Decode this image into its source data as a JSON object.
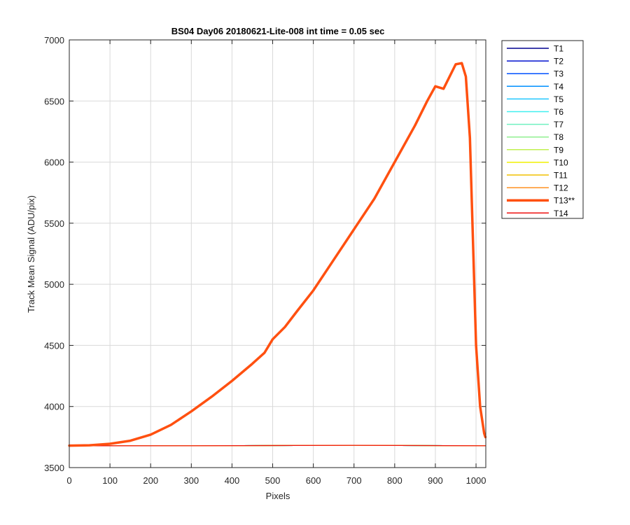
{
  "chart_data": {
    "type": "line",
    "title": "BS04 Day06 20180621-Lite-008 int time = 0.05 sec",
    "xlabel": "Pixels",
    "ylabel": "Track Mean Signal (ADU/pix)",
    "xlim": [
      0,
      1024
    ],
    "ylim": [
      3500,
      7000
    ],
    "xticks": [
      0,
      100,
      200,
      300,
      400,
      500,
      600,
      700,
      800,
      900,
      1000
    ],
    "yticks": [
      3500,
      4000,
      4500,
      5000,
      5500,
      6000,
      6500,
      7000
    ],
    "grid": true,
    "legend_position": "outside-right-top",
    "series": [
      {
        "name": "T1",
        "color": "#00008f",
        "x": [
          0,
          300,
          700,
          1023
        ],
        "values": [
          3678,
          3679,
          3682,
          3679
        ]
      },
      {
        "name": "T2",
        "color": "#0010d0",
        "x": [
          0,
          300,
          700,
          1023
        ],
        "values": [
          3678,
          3679,
          3682,
          3679
        ]
      },
      {
        "name": "T3",
        "color": "#0050ff",
        "x": [
          0,
          300,
          700,
          1023
        ],
        "values": [
          3678,
          3679,
          3682,
          3679
        ]
      },
      {
        "name": "T4",
        "color": "#0090ff",
        "x": [
          0,
          300,
          700,
          1023
        ],
        "values": [
          3678,
          3679,
          3682,
          3679
        ]
      },
      {
        "name": "T5",
        "color": "#20c8ff",
        "x": [
          0,
          300,
          700,
          1023
        ],
        "values": [
          3678,
          3679,
          3682,
          3679
        ]
      },
      {
        "name": "T6",
        "color": "#40f0f0",
        "x": [
          0,
          300,
          700,
          1023
        ],
        "values": [
          3678,
          3679,
          3682,
          3679
        ]
      },
      {
        "name": "T7",
        "color": "#70f0c0",
        "x": [
          0,
          300,
          700,
          1023
        ],
        "values": [
          3678,
          3679,
          3682,
          3679
        ]
      },
      {
        "name": "T8",
        "color": "#90f090",
        "x": [
          0,
          300,
          700,
          1023
        ],
        "values": [
          3678,
          3679,
          3682,
          3679
        ]
      },
      {
        "name": "T9",
        "color": "#c0f050",
        "x": [
          0,
          300,
          700,
          1023
        ],
        "values": [
          3678,
          3679,
          3682,
          3679
        ]
      },
      {
        "name": "T10",
        "color": "#f0f000",
        "x": [
          0,
          300,
          700,
          1023
        ],
        "values": [
          3678,
          3679,
          3682,
          3679
        ]
      },
      {
        "name": "T11",
        "color": "#f0c000",
        "x": [
          0,
          300,
          700,
          1023
        ],
        "values": [
          3678,
          3679,
          3683,
          3679
        ]
      },
      {
        "name": "T12",
        "color": "#ff9020",
        "x": [
          0,
          300,
          700,
          1023
        ],
        "values": [
          3678,
          3679,
          3683,
          3679
        ]
      },
      {
        "name": "T13**",
        "color": "#ff5010",
        "bold": true,
        "x": [
          0,
          50,
          100,
          150,
          200,
          250,
          300,
          350,
          400,
          450,
          480,
          500,
          530,
          560,
          600,
          650,
          700,
          750,
          800,
          850,
          880,
          900,
          920,
          950,
          965,
          975,
          985,
          1000,
          1010,
          1020,
          1023
        ],
        "values": [
          3680,
          3683,
          3695,
          3720,
          3770,
          3850,
          3960,
          4080,
          4210,
          4350,
          4440,
          4550,
          4650,
          4780,
          4950,
          5200,
          5450,
          5700,
          6000,
          6300,
          6500,
          6620,
          6600,
          6800,
          6810,
          6700,
          6200,
          4500,
          4000,
          3780,
          3750
        ]
      },
      {
        "name": "T14",
        "color": "#ee1010",
        "x": [
          0,
          300,
          700,
          1023
        ],
        "values": [
          3678,
          3679,
          3682,
          3679
        ]
      }
    ]
  }
}
